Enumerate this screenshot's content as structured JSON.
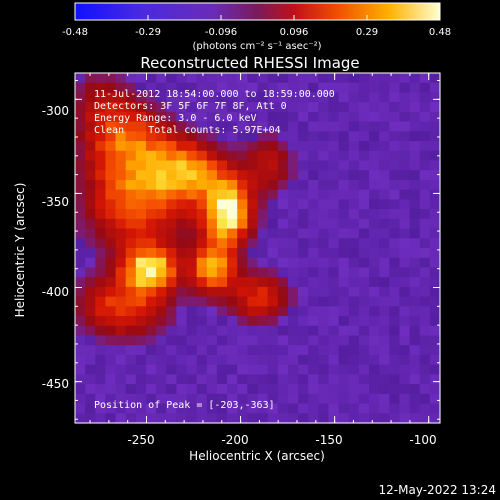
{
  "colorbar": {
    "ticks": [
      "-0.48",
      "-0.29",
      "-0.096",
      "0.096",
      "0.29",
      "0.48"
    ],
    "unit_label": "(photons cm⁻² s⁻¹ asec⁻²)",
    "min": -0.48,
    "max": 0.48
  },
  "annotations": {
    "time_range": "11-Jul-2012 18:54:00.000 to 18:59:00.000",
    "detectors": "Detectors: 3F 5F 6F 7F 8F, Att 0",
    "energy_range": "Energy Range: 3.0 - 6.0 keV",
    "clean_info": "Clean    Total counts: 5.97E+04",
    "peak_position": "Position of Peak = [-203,-363]"
  },
  "footer": {
    "timestamp": "12-May-2022 13:24"
  },
  "colors": {
    "background": "#000000",
    "text": "#ffffff",
    "image_floor": "#5a23a6"
  },
  "chart_data": {
    "type": "heatmap",
    "title": "Reconstructed RHESSI Image",
    "xlabel": "Heliocentric X (arcsec)",
    "ylabel": "Heliocentric Y (arcsec)",
    "xlim": [
      -288,
      -94
    ],
    "ylim": [
      -472,
      -286
    ],
    "x_ticks": [
      -250,
      -200,
      -150,
      -100
    ],
    "y_ticks": [
      -300,
      -350,
      -400,
      -450
    ],
    "x_tick_labels": [
      "-250",
      "-200",
      "-150",
      "-100"
    ],
    "y_tick_labels": [
      "-300",
      "-350",
      "-400",
      "-450"
    ],
    "value_range": [
      -0.48,
      0.48
    ],
    "peak": {
      "x": -203,
      "y": -363
    },
    "sources": [
      {
        "x": -207,
        "y": -360,
        "sigma_x": 9,
        "sigma_y": 12,
        "amplitude": 0.48
      },
      {
        "x": -248,
        "y": -390,
        "sigma_x": 10,
        "sigma_y": 8,
        "amplitude": 0.4
      },
      {
        "x": -215,
        "y": -390,
        "sigma_x": 8,
        "sigma_y": 9,
        "amplitude": 0.36
      },
      {
        "x": -228,
        "y": -338,
        "sigma_x": 14,
        "sigma_y": 11,
        "amplitude": 0.3
      },
      {
        "x": -260,
        "y": -322,
        "sigma_x": 16,
        "sigma_y": 14,
        "amplitude": 0.26
      },
      {
        "x": -255,
        "y": -355,
        "sigma_x": 20,
        "sigma_y": 18,
        "amplitude": 0.28
      },
      {
        "x": -262,
        "y": -410,
        "sigma_x": 18,
        "sigma_y": 12,
        "amplitude": 0.25
      },
      {
        "x": -190,
        "y": -405,
        "sigma_x": 12,
        "sigma_y": 10,
        "amplitude": 0.22
      },
      {
        "x": -185,
        "y": -335,
        "sigma_x": 10,
        "sigma_y": 12,
        "amplitude": 0.16
      },
      {
        "x": -275,
        "y": -300,
        "sigma_x": 12,
        "sigma_y": 12,
        "amplitude": 0.12
      }
    ]
  }
}
